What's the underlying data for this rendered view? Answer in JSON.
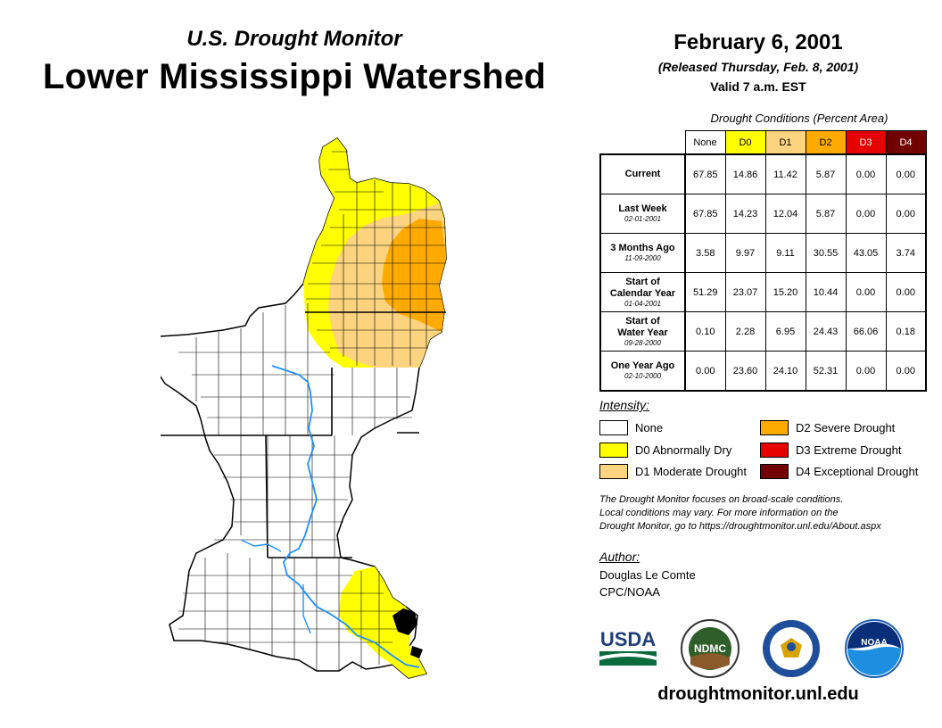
{
  "header": {
    "subtitle": "U.S. Drought Monitor",
    "title": "Lower Mississippi Watershed",
    "date": "February 6, 2001",
    "released": "(Released Thursday, Feb. 8, 2001)",
    "valid": "Valid 7 a.m. EST"
  },
  "table": {
    "caption": "Drought Conditions (Percent Area)",
    "columns": [
      "None",
      "D0",
      "D1",
      "D2",
      "D3",
      "D4"
    ],
    "column_colors": [
      "#ffffff",
      "#ffff00",
      "#fcd37f",
      "#ffaa00",
      "#e60000",
      "#730000"
    ],
    "column_text_colors": [
      "#000000",
      "#000000",
      "#000000",
      "#000000",
      "#ffffff",
      "#ffffff"
    ],
    "rows": [
      {
        "label": "Current",
        "sublabel": "",
        "date": "",
        "values": [
          "67.85",
          "14.86",
          "11.42",
          "5.87",
          "0.00",
          "0.00"
        ]
      },
      {
        "label": "Last Week",
        "sublabel": "",
        "date": "02-01-2001",
        "values": [
          "67.85",
          "14.23",
          "12.04",
          "5.87",
          "0.00",
          "0.00"
        ]
      },
      {
        "label": "3 Months Ago",
        "sublabel": "",
        "date": "11-09-2000",
        "values": [
          "3.58",
          "9.97",
          "9.11",
          "30.55",
          "43.05",
          "3.74"
        ]
      },
      {
        "label": "Start of",
        "sublabel": "Calendar Year",
        "date": "01-04-2001",
        "values": [
          "51.29",
          "23.07",
          "15.20",
          "10.44",
          "0.00",
          "0.00"
        ]
      },
      {
        "label": "Start of",
        "sublabel": "Water Year",
        "date": "09-28-2000",
        "values": [
          "0.10",
          "2.28",
          "6.95",
          "24.43",
          "66.06",
          "0.18"
        ]
      },
      {
        "label": "One Year Ago",
        "sublabel": "",
        "date": "02-10-2000",
        "values": [
          "0.00",
          "23.60",
          "24.10",
          "52.31",
          "0.00",
          "0.00"
        ]
      }
    ]
  },
  "legend": {
    "title": "Intensity:",
    "items": [
      {
        "label": "None",
        "color": "#ffffff"
      },
      {
        "label": "D0 Abnormally Dry",
        "color": "#ffff00"
      },
      {
        "label": "D1 Moderate Drought",
        "color": "#fcd37f"
      },
      {
        "label": "D2 Severe Drought",
        "color": "#ffaa00"
      },
      {
        "label": "D3 Extreme Drought",
        "color": "#e60000"
      },
      {
        "label": "D4 Exceptional Drought",
        "color": "#730000"
      }
    ]
  },
  "note": {
    "line1": "The Drought Monitor focuses on broad-scale conditions.",
    "line2": "Local conditions may vary. For more information on the",
    "line3": "Drought Monitor, go to https://droughtmonitor.unl.edu/About.aspx"
  },
  "author": {
    "title": "Author:",
    "name": "Douglas Le Comte",
    "org": "CPC/NOAA"
  },
  "logos": {
    "usda": "USDA",
    "ndmc": "NDMC",
    "noaa": "NOAA"
  },
  "website": "droughtmonitor.unl.edu",
  "map_colors": {
    "none": "#ffffff",
    "d0": "#ffff00",
    "d1": "#fcd37f",
    "d2": "#ffaa00",
    "water": "#1e90ff"
  }
}
